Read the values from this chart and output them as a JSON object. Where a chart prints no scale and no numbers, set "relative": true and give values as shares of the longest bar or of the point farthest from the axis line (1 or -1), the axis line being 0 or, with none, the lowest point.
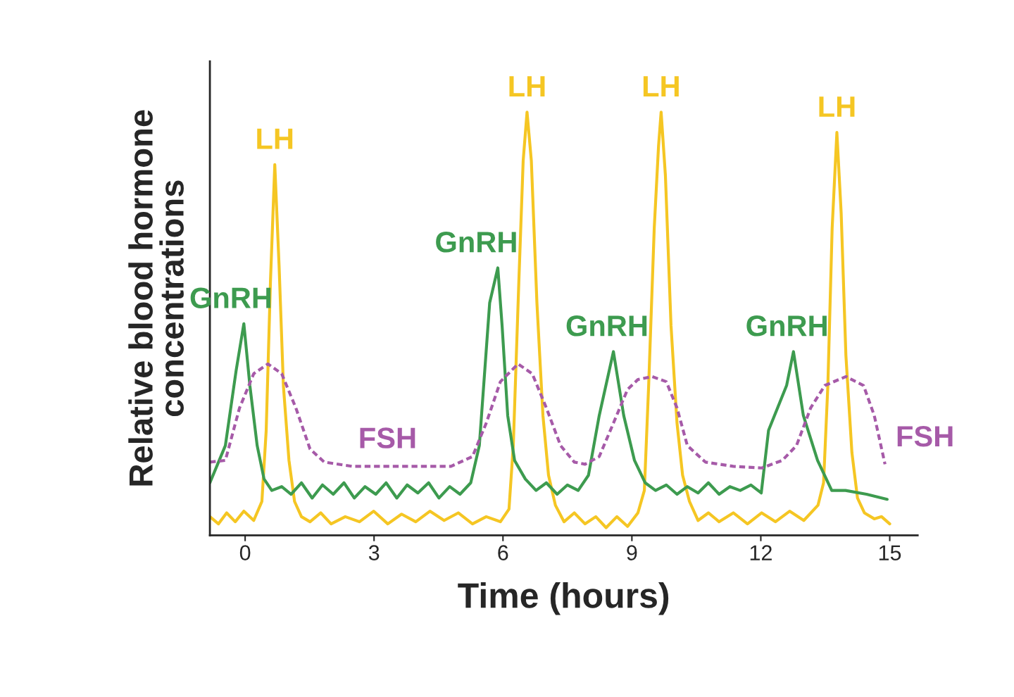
{
  "chart_data": {
    "type": "line",
    "relative": true,
    "xlabel": "Time (hours)",
    "ylabel": "Relative blood hormone\nconcentrations",
    "xlim": [
      -0.82,
      15.65
    ],
    "xticks": [
      0,
      3,
      6,
      9,
      12,
      15
    ],
    "tick_labels": "x",
    "grid": false,
    "legend": false,
    "series": [
      {
        "name": "LH",
        "color": "#f5c623",
        "line_style": "solid",
        "x": [
          -0.82,
          -0.62,
          -0.43,
          -0.23,
          -0.03,
          0.2,
          0.39,
          0.49,
          0.59,
          0.69,
          0.79,
          0.89,
          1.02,
          1.15,
          1.31,
          1.51,
          1.76,
          2.0,
          2.33,
          2.66,
          2.99,
          3.32,
          3.64,
          3.97,
          4.3,
          4.63,
          4.96,
          5.29,
          5.61,
          5.94,
          6.14,
          6.24,
          6.37,
          6.47,
          6.56,
          6.66,
          6.79,
          6.93,
          7.06,
          7.22,
          7.42,
          7.66,
          7.91,
          8.16,
          8.4,
          8.65,
          8.9,
          9.14,
          9.29,
          9.39,
          9.52,
          9.62,
          9.68,
          9.78,
          9.91,
          10.05,
          10.18,
          10.34,
          10.54,
          10.78,
          11.03,
          11.36,
          11.69,
          12.02,
          12.34,
          12.67,
          13.0,
          13.33,
          13.46,
          13.56,
          13.66,
          13.77,
          13.87,
          13.98,
          14.12,
          14.25,
          14.41,
          14.64,
          14.81,
          15.0
        ],
        "values": [
          0.044,
          0.027,
          0.053,
          0.032,
          0.057,
          0.035,
          0.08,
          0.248,
          0.602,
          0.876,
          0.637,
          0.354,
          0.177,
          0.08,
          0.044,
          0.032,
          0.053,
          0.027,
          0.044,
          0.032,
          0.057,
          0.027,
          0.05,
          0.032,
          0.057,
          0.035,
          0.053,
          0.027,
          0.044,
          0.032,
          0.062,
          0.212,
          0.602,
          0.885,
          1.0,
          0.885,
          0.549,
          0.283,
          0.142,
          0.071,
          0.032,
          0.053,
          0.027,
          0.044,
          0.018,
          0.044,
          0.021,
          0.053,
          0.106,
          0.354,
          0.726,
          0.92,
          1.0,
          0.85,
          0.496,
          0.265,
          0.142,
          0.08,
          0.035,
          0.053,
          0.032,
          0.053,
          0.027,
          0.053,
          0.032,
          0.057,
          0.035,
          0.071,
          0.124,
          0.354,
          0.726,
          0.952,
          0.761,
          0.425,
          0.195,
          0.088,
          0.053,
          0.039,
          0.044,
          0.027
        ]
      },
      {
        "name": "GnRH",
        "color": "#3d9b4f",
        "line_style": "solid",
        "x": [
          -0.82,
          -0.46,
          -0.21,
          -0.03,
          0.11,
          0.28,
          0.44,
          0.62,
          0.85,
          1.07,
          1.31,
          1.56,
          1.8,
          2.05,
          2.3,
          2.54,
          2.79,
          3.04,
          3.28,
          3.53,
          3.77,
          4.02,
          4.27,
          4.51,
          4.76,
          5.0,
          5.25,
          5.45,
          5.69,
          5.88,
          5.98,
          6.11,
          6.27,
          6.52,
          6.77,
          7.01,
          7.26,
          7.5,
          7.75,
          7.99,
          8.24,
          8.57,
          8.81,
          9.06,
          9.31,
          9.55,
          9.8,
          10.05,
          10.29,
          10.54,
          10.78,
          11.03,
          11.28,
          11.52,
          11.77,
          12.01,
          12.18,
          12.6,
          12.76,
          12.99,
          13.32,
          13.65,
          13.97,
          14.46,
          14.94
        ],
        "values": [
          0.124,
          0.212,
          0.389,
          0.5,
          0.354,
          0.212,
          0.133,
          0.106,
          0.115,
          0.097,
          0.124,
          0.088,
          0.119,
          0.097,
          0.124,
          0.088,
          0.115,
          0.097,
          0.124,
          0.088,
          0.119,
          0.1,
          0.124,
          0.088,
          0.115,
          0.097,
          0.124,
          0.212,
          0.549,
          0.632,
          0.495,
          0.283,
          0.177,
          0.133,
          0.106,
          0.124,
          0.097,
          0.119,
          0.106,
          0.142,
          0.283,
          0.434,
          0.283,
          0.177,
          0.124,
          0.106,
          0.119,
          0.097,
          0.115,
          0.1,
          0.124,
          0.097,
          0.115,
          0.106,
          0.119,
          0.1,
          0.248,
          0.354,
          0.434,
          0.283,
          0.177,
          0.106,
          0.106,
          0.097,
          0.085
        ]
      },
      {
        "name": "FSH",
        "color": "#a65aa8",
        "line_style": "dashed",
        "x": [
          -0.82,
          -0.46,
          -0.13,
          0.2,
          0.53,
          0.85,
          1.18,
          1.51,
          1.84,
          2.49,
          3.48,
          4.79,
          5.29,
          5.61,
          5.94,
          6.35,
          6.68,
          7.01,
          7.34,
          7.66,
          7.91,
          8.24,
          8.57,
          8.9,
          9.14,
          9.47,
          9.8,
          10.05,
          10.29,
          10.71,
          11.36,
          12.02,
          12.5,
          12.83,
          13.16,
          13.49,
          13.98,
          14.39,
          14.64,
          14.89
        ],
        "values": [
          0.173,
          0.177,
          0.301,
          0.382,
          0.405,
          0.382,
          0.301,
          0.204,
          0.173,
          0.163,
          0.163,
          0.163,
          0.186,
          0.265,
          0.363,
          0.405,
          0.382,
          0.301,
          0.212,
          0.173,
          0.168,
          0.186,
          0.265,
          0.345,
          0.368,
          0.375,
          0.363,
          0.301,
          0.212,
          0.173,
          0.163,
          0.159,
          0.177,
          0.212,
          0.301,
          0.354,
          0.375,
          0.354,
          0.283,
          0.168
        ]
      }
    ]
  }
}
